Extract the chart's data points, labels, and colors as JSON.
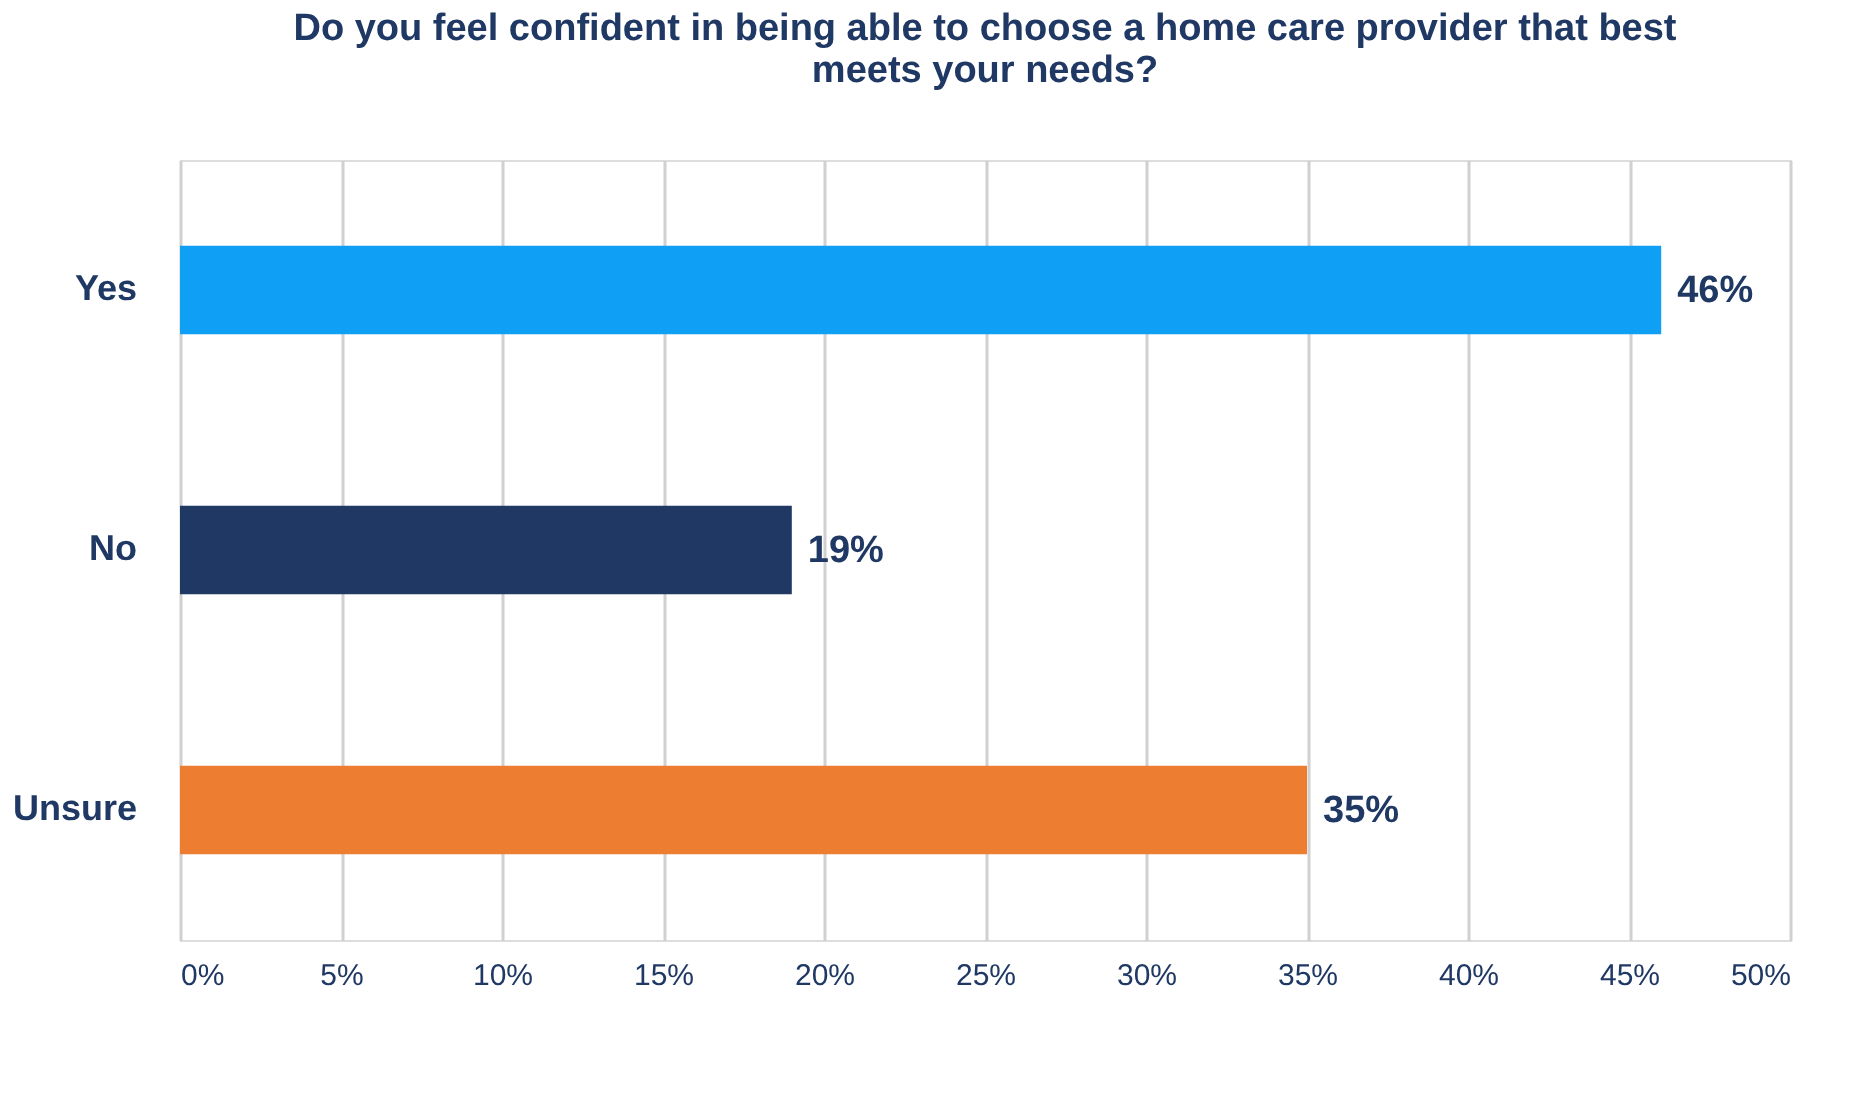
{
  "chart_data": {
    "type": "bar",
    "orientation": "horizontal",
    "title": "Do you feel confident in being able to choose a home care provider that best meets your needs?",
    "categories": [
      "Yes",
      "No",
      "Unsure"
    ],
    "values": [
      46,
      19,
      35
    ],
    "colors": [
      "#0fa0f5",
      "#1f3864",
      "#ed7d31"
    ],
    "value_labels": [
      "46%",
      "19%",
      "35%"
    ],
    "xlim": [
      0,
      50
    ],
    "xticks": [
      {
        "value": 0,
        "label": "0%"
      },
      {
        "value": 5,
        "label": "5%"
      },
      {
        "value": 10,
        "label": "10%"
      },
      {
        "value": 15,
        "label": "15%"
      },
      {
        "value": 20,
        "label": "20%"
      },
      {
        "value": 25,
        "label": "25%"
      },
      {
        "value": 30,
        "label": "30%"
      },
      {
        "value": 35,
        "label": "35%"
      },
      {
        "value": 40,
        "label": "40%"
      },
      {
        "value": 45,
        "label": "45%"
      },
      {
        "value": 50,
        "label": "50%"
      }
    ],
    "grid": "x"
  }
}
